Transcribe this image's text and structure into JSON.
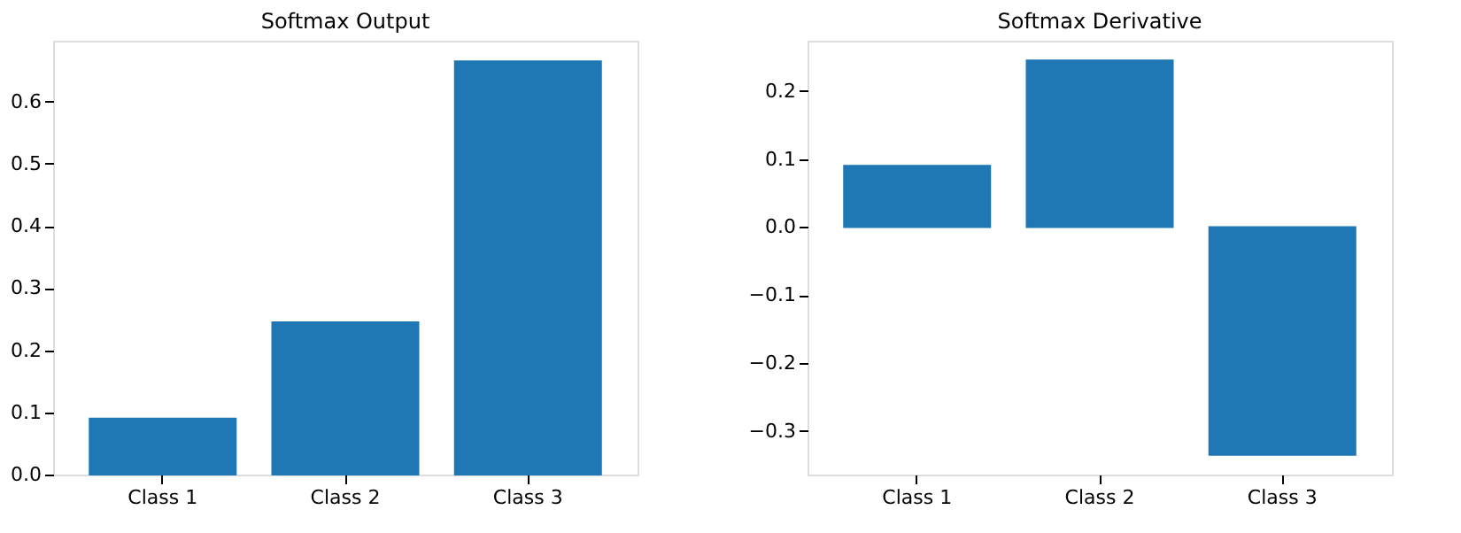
{
  "chart_data": [
    {
      "type": "bar",
      "title": "Softmax Output",
      "categories": [
        "Class 1",
        "Class 2",
        "Class 3"
      ],
      "values": [
        0.09,
        0.245,
        0.665
      ],
      "color": "#1f77b4",
      "ylim": [
        0,
        0.698
      ],
      "yticks": [
        {
          "value": 0,
          "label": "0.0"
        },
        0.1,
        0.2,
        0.3,
        0.4,
        0.5,
        0.6
      ],
      "grid": false
    },
    {
      "type": "bar",
      "title": "Softmax Derivative",
      "categories": [
        "Class 1",
        "Class 2",
        "Class 3"
      ],
      "values": [
        0.09,
        0.245,
        -0.335
      ],
      "color": "#1f77b4",
      "ylim": [
        -0.364,
        0.274
      ],
      "yticks": [
        -0.3,
        -0.2,
        -0.1,
        {
          "value": 0,
          "label": "0.0"
        },
        0.1,
        0.2
      ],
      "grid": false
    }
  ]
}
